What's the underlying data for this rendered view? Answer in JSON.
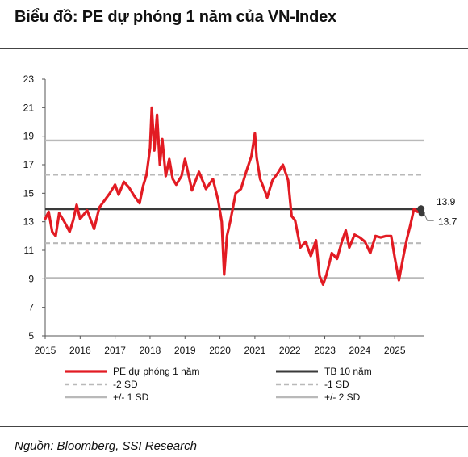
{
  "title": "Biểu đồ: PE dự phóng 1 năm của VN-Index",
  "source": "Nguồn: Bloomberg, SSI Research",
  "colors": {
    "pe": "#e21b23",
    "avg": "#3a3a3a",
    "sd": "#b9b9b9"
  },
  "chart_data": {
    "type": "line",
    "title": "Biểu đồ: PE dự phóng 1 năm của VN-Index",
    "xlabel": "",
    "ylabel": "",
    "xlim": [
      2015,
      2025.85
    ],
    "ylim": [
      5,
      23
    ],
    "yticks": [
      "5",
      "7",
      "9",
      "11",
      "13",
      "15",
      "17",
      "19",
      "21",
      "23"
    ],
    "xticks": [
      "2015",
      "2016",
      "2017",
      "2018",
      "2019",
      "2020",
      "2021",
      "2022",
      "2023",
      "2024",
      "2025"
    ],
    "grid": false,
    "legend_position": "bottom",
    "series": [
      {
        "name": "PE dự phóng 1 năm",
        "style": "solid-red",
        "x": [
          2015.0,
          2015.1,
          2015.2,
          2015.3,
          2015.4,
          2015.55,
          2015.7,
          2015.8,
          2015.9,
          2016.0,
          2016.2,
          2016.4,
          2016.55,
          2016.7,
          2016.85,
          2017.0,
          2017.1,
          2017.25,
          2017.4,
          2017.55,
          2017.7,
          2017.8,
          2017.9,
          2018.0,
          2018.05,
          2018.12,
          2018.2,
          2018.28,
          2018.35,
          2018.45,
          2018.55,
          2018.65,
          2018.75,
          2018.9,
          2019.0,
          2019.2,
          2019.4,
          2019.6,
          2019.8,
          2019.95,
          2020.05,
          2020.12,
          2020.2,
          2020.3,
          2020.45,
          2020.6,
          2020.75,
          2020.9,
          2021.0,
          2021.05,
          2021.15,
          2021.25,
          2021.35,
          2021.5,
          2021.65,
          2021.8,
          2021.95,
          2022.05,
          2022.15,
          2022.3,
          2022.45,
          2022.6,
          2022.75,
          2022.85,
          2022.95,
          2023.05,
          2023.2,
          2023.35,
          2023.5,
          2023.6,
          2023.7,
          2023.85,
          2024.0,
          2024.15,
          2024.3,
          2024.45,
          2024.6,
          2024.75,
          2024.9,
          2025.0,
          2025.12,
          2025.25,
          2025.35,
          2025.45,
          2025.55,
          2025.65,
          2025.75
        ],
        "values": [
          13.2,
          13.7,
          12.3,
          12.0,
          13.6,
          13.0,
          12.3,
          13.1,
          14.2,
          13.2,
          13.8,
          12.5,
          14.0,
          14.5,
          15.0,
          15.6,
          14.9,
          15.8,
          15.4,
          14.8,
          14.3,
          15.5,
          16.3,
          18.2,
          21.0,
          18.0,
          20.5,
          17.0,
          18.8,
          16.2,
          17.4,
          16.0,
          15.6,
          16.2,
          17.4,
          15.2,
          16.5,
          15.3,
          16.0,
          14.5,
          13.0,
          9.3,
          12.0,
          13.1,
          15.0,
          15.3,
          16.5,
          17.6,
          19.2,
          17.5,
          16.0,
          15.4,
          14.7,
          15.9,
          16.4,
          17.0,
          15.9,
          13.4,
          13.1,
          11.2,
          11.6,
          10.6,
          11.7,
          9.2,
          8.6,
          9.3,
          10.8,
          10.4,
          11.7,
          12.4,
          11.2,
          12.1,
          11.9,
          11.6,
          10.8,
          12.0,
          11.9,
          12.0,
          12.0,
          10.5,
          8.9,
          10.6,
          11.8,
          12.8,
          13.9,
          13.7,
          13.7
        ]
      },
      {
        "name": "TB 10 năm",
        "style": "solid-dark",
        "value": 13.9
      },
      {
        "name": "-2 SD",
        "style": "dashed-gray",
        "value": 11.5
      },
      {
        "name": "-1 SD",
        "style": "dashed-gray",
        "value": 16.3
      },
      {
        "name": "+/- 1 SD",
        "style": "solid-gray",
        "value": 9.05
      },
      {
        "name": "+/- 2 SD",
        "style": "solid-gray",
        "value": 18.7
      }
    ],
    "legend": [
      {
        "label": "PE dự phóng 1 năm",
        "style": "solid-red"
      },
      {
        "label": "TB 10 năm",
        "style": "solid-dark"
      },
      {
        "label": "-2 SD",
        "style": "dashed-gray"
      },
      {
        "label": "-1 SD",
        "style": "dashed-gray"
      },
      {
        "label": "+/- 1 SD",
        "style": "solid-gray"
      },
      {
        "label": "+/- 2 SD",
        "style": "solid-gray"
      }
    ],
    "annotations": [
      {
        "text": "13.9",
        "value": 13.9
      },
      {
        "text": "13.7",
        "value": 13.7
      }
    ]
  }
}
